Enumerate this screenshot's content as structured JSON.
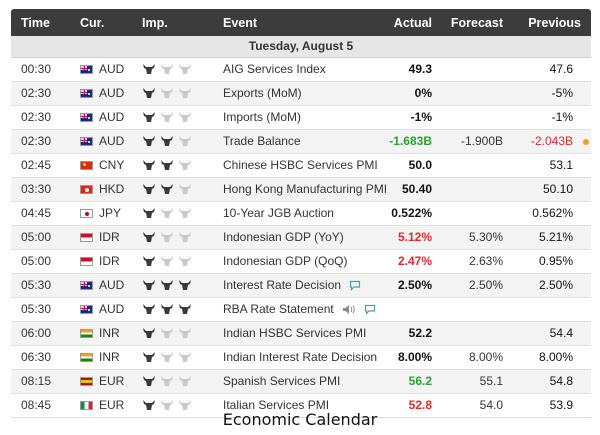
{
  "header": {
    "time": "Time",
    "currency": "Cur.",
    "importance": "Imp.",
    "event": "Event",
    "actual": "Actual",
    "forecast": "Forecast",
    "previous": "Previous"
  },
  "date_label": "Tuesday, August 5",
  "caption": "Economic Calendar",
  "colors": {
    "positive": "#2aa32a",
    "negative": "#e02a2a",
    "header_bg": "#3c3c3c",
    "dot": "#f0a21e"
  },
  "rows": [
    {
      "time": "00:30",
      "flag": "au",
      "currency": "AUD",
      "importance": 1,
      "event": "AIG Services Index",
      "actual": "49.3",
      "actual_tone": "neutral",
      "forecast": "",
      "previous": "47.6",
      "previous_tone": "neutral",
      "icons": []
    },
    {
      "time": "02:30",
      "flag": "au",
      "currency": "AUD",
      "importance": 1,
      "event": "Exports (MoM)",
      "actual": "0%",
      "actual_tone": "neutral",
      "forecast": "",
      "previous": "-5%",
      "previous_tone": "neutral",
      "icons": []
    },
    {
      "time": "02:30",
      "flag": "au",
      "currency": "AUD",
      "importance": 1,
      "event": "Imports (MoM)",
      "actual": "-1%",
      "actual_tone": "neutral",
      "forecast": "",
      "previous": "-1%",
      "previous_tone": "neutral",
      "icons": []
    },
    {
      "time": "02:30",
      "flag": "au",
      "currency": "AUD",
      "importance": 2,
      "event": "Trade Balance",
      "actual": "-1.683B",
      "actual_tone": "pos",
      "forecast": "-1.900B",
      "previous": "-2.043B",
      "previous_tone": "neg",
      "icons": [],
      "revised_dot": true
    },
    {
      "time": "02:45",
      "flag": "cn",
      "currency": "CNY",
      "importance": 2,
      "event": "Chinese HSBC Services PMI",
      "actual": "50.0",
      "actual_tone": "neutral",
      "forecast": "",
      "previous": "53.1",
      "previous_tone": "neutral",
      "icons": []
    },
    {
      "time": "03:30",
      "flag": "hk",
      "currency": "HKD",
      "importance": 2,
      "event": "Hong Kong Manufacturing PMI",
      "actual": "50.40",
      "actual_tone": "neutral",
      "forecast": "",
      "previous": "50.10",
      "previous_tone": "neutral",
      "icons": []
    },
    {
      "time": "04:45",
      "flag": "jp",
      "currency": "JPY",
      "importance": 1,
      "event": "10-Year JGB Auction",
      "actual": "0.522%",
      "actual_tone": "neutral",
      "forecast": "",
      "previous": "0.562%",
      "previous_tone": "neutral",
      "icons": []
    },
    {
      "time": "05:00",
      "flag": "id",
      "currency": "IDR",
      "importance": 1,
      "event": "Indonesian GDP (YoY)",
      "actual": "5.12%",
      "actual_tone": "neg",
      "forecast": "5.30%",
      "previous": "5.21%",
      "previous_tone": "neutral",
      "icons": []
    },
    {
      "time": "05:00",
      "flag": "id",
      "currency": "IDR",
      "importance": 1,
      "event": "Indonesian GDP (QoQ)",
      "actual": "2.47%",
      "actual_tone": "neg",
      "forecast": "2.63%",
      "previous": "0.95%",
      "previous_tone": "neutral",
      "icons": []
    },
    {
      "time": "05:30",
      "flag": "au",
      "currency": "AUD",
      "importance": 3,
      "event": "Interest Rate Decision",
      "actual": "2.50%",
      "actual_tone": "neutral",
      "forecast": "2.50%",
      "previous": "2.50%",
      "previous_tone": "neutral",
      "icons": [
        "comment-icon"
      ]
    },
    {
      "time": "05:30",
      "flag": "au",
      "currency": "AUD",
      "importance": 3,
      "event": "RBA Rate Statement",
      "actual": "",
      "actual_tone": "neutral",
      "forecast": "",
      "previous": "",
      "previous_tone": "neutral",
      "icons": [
        "speaker-icon",
        "comment-icon"
      ]
    },
    {
      "time": "06:00",
      "flag": "in",
      "currency": "INR",
      "importance": 1,
      "event": "Indian HSBC Services PMI",
      "actual": "52.2",
      "actual_tone": "neutral",
      "forecast": "",
      "previous": "54.4",
      "previous_tone": "neutral",
      "icons": []
    },
    {
      "time": "06:30",
      "flag": "in",
      "currency": "INR",
      "importance": 1,
      "event": "Indian Interest Rate Decision",
      "actual": "8.00%",
      "actual_tone": "neutral",
      "forecast": "8.00%",
      "previous": "8.00%",
      "previous_tone": "neutral",
      "icons": []
    },
    {
      "time": "08:15",
      "flag": "es",
      "currency": "EUR",
      "importance": 1,
      "event": "Spanish Services PMI",
      "actual": "56.2",
      "actual_tone": "pos",
      "forecast": "55.1",
      "previous": "54.8",
      "previous_tone": "neutral",
      "icons": []
    },
    {
      "time": "08:45",
      "flag": "it",
      "currency": "EUR",
      "importance": 1,
      "event": "Italian Services PMI",
      "actual": "52.8",
      "actual_tone": "neg",
      "forecast": "54.0",
      "previous": "53.9",
      "previous_tone": "neutral",
      "icons": []
    }
  ]
}
